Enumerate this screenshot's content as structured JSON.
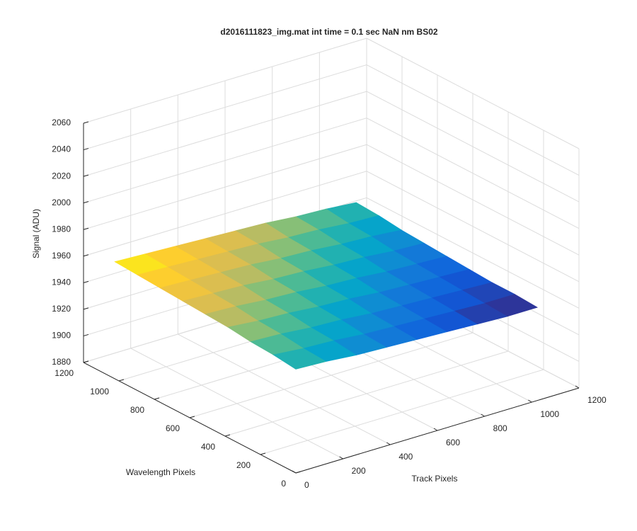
{
  "chart_data": {
    "type": "surface",
    "title": "d2016111823_img.mat int time = 0.1 sec  NaN nm BS02",
    "xlabel": "Track Pixels",
    "ylabel": "Wavelength Pixels",
    "zlabel": "Signal (ADU)",
    "x": [
      0,
      128,
      256,
      384,
      512,
      640,
      768,
      896,
      1024
    ],
    "y": [
      0,
      128,
      256,
      384,
      512,
      640,
      768,
      896,
      1024
    ],
    "z": [
      [
        1958,
        1957,
        1955,
        1954,
        1953,
        1952,
        1951,
        1950,
        1950
      ],
      [
        1960,
        1958,
        1957,
        1955,
        1954,
        1953,
        1952,
        1951,
        1951
      ],
      [
        1961,
        1960,
        1958,
        1957,
        1955,
        1954,
        1953,
        1952,
        1951
      ],
      [
        1963,
        1961,
        1960,
        1958,
        1957,
        1955,
        1954,
        1953,
        1952
      ],
      [
        1964,
        1963,
        1961,
        1960,
        1958,
        1957,
        1955,
        1954,
        1953
      ],
      [
        1965,
        1964,
        1963,
        1961,
        1960,
        1958,
        1957,
        1955,
        1954
      ],
      [
        1966,
        1965,
        1964,
        1963,
        1961,
        1960,
        1958,
        1957,
        1955
      ],
      [
        1967,
        1966,
        1965,
        1964,
        1963,
        1961,
        1960,
        1958,
        1957
      ],
      [
        1968,
        1967,
        1966,
        1965,
        1964,
        1963,
        1961,
        1960,
        1958
      ]
    ],
    "xlim": [
      0,
      1200
    ],
    "ylim": [
      0,
      1200
    ],
    "zlim": [
      1880,
      2060
    ],
    "xticks": [
      0,
      200,
      400,
      600,
      800,
      1000,
      1200
    ],
    "yticks": [
      0,
      200,
      400,
      600,
      800,
      1000,
      1200
    ],
    "zticks": [
      1880,
      1900,
      1920,
      1940,
      1960,
      1980,
      2000,
      2020,
      2040,
      2060
    ],
    "grid": true,
    "colormap": "parula"
  }
}
